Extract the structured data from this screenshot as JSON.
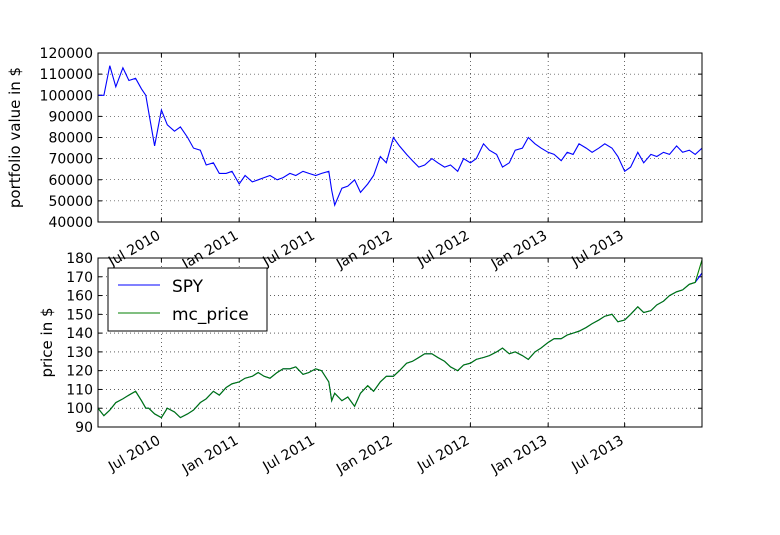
{
  "chart_data": [
    {
      "type": "line",
      "ylabel": "portfolio value in $",
      "ylim": [
        40000,
        120000
      ],
      "yticks": [
        40000,
        50000,
        60000,
        70000,
        80000,
        90000,
        100000,
        110000,
        120000
      ],
      "xlim": [
        "2010-02-01",
        "2013-12-31"
      ],
      "xticks": [
        "2010-07-01",
        "2011-01-01",
        "2011-07-01",
        "2012-01-01",
        "2012-07-01",
        "2013-01-01",
        "2013-07-01"
      ],
      "xtick_labels": [
        "Jul 2010",
        "Jan 2011",
        "Jul 2011",
        "Jan 2012",
        "Jul 2012",
        "Jan 2013",
        "Jul 2013"
      ],
      "grid": true,
      "series": [
        {
          "color": "#0000ff",
          "x": [
            "2010-02-01",
            "2010-02-15",
            "2010-03-01",
            "2010-03-15",
            "2010-04-01",
            "2010-04-15",
            "2010-05-01",
            "2010-05-15",
            "2010-05-25",
            "2010-06-01",
            "2010-06-15",
            "2010-07-01",
            "2010-07-15",
            "2010-08-01",
            "2010-08-15",
            "2010-09-01",
            "2010-09-15",
            "2010-10-01",
            "2010-10-15",
            "2010-11-01",
            "2010-11-15",
            "2010-12-01",
            "2010-12-15",
            "2011-01-01",
            "2011-01-15",
            "2011-02-01",
            "2011-02-15",
            "2011-03-01",
            "2011-03-15",
            "2011-04-01",
            "2011-04-15",
            "2011-05-01",
            "2011-05-15",
            "2011-06-01",
            "2011-06-15",
            "2011-07-01",
            "2011-07-15",
            "2011-08-01",
            "2011-08-08",
            "2011-08-15",
            "2011-09-01",
            "2011-09-15",
            "2011-10-01",
            "2011-10-15",
            "2011-11-01",
            "2011-11-15",
            "2011-12-01",
            "2011-12-15",
            "2012-01-01",
            "2012-01-15",
            "2012-02-01",
            "2012-02-15",
            "2012-03-01",
            "2012-03-15",
            "2012-04-01",
            "2012-04-15",
            "2012-05-01",
            "2012-05-15",
            "2012-06-01",
            "2012-06-15",
            "2012-07-01",
            "2012-07-15",
            "2012-08-01",
            "2012-08-15",
            "2012-09-01",
            "2012-09-15",
            "2012-10-01",
            "2012-10-15",
            "2012-11-01",
            "2012-11-15",
            "2012-12-01",
            "2012-12-15",
            "2013-01-01",
            "2013-01-15",
            "2013-02-01",
            "2013-02-15",
            "2013-03-01",
            "2013-03-15",
            "2013-04-01",
            "2013-04-15",
            "2013-05-01",
            "2013-05-15",
            "2013-06-01",
            "2013-06-15",
            "2013-07-01",
            "2013-07-15",
            "2013-08-01",
            "2013-08-15",
            "2013-09-01",
            "2013-09-15",
            "2013-10-01",
            "2013-10-15",
            "2013-11-01",
            "2013-11-15",
            "2013-12-01",
            "2013-12-15",
            "2013-12-31"
          ],
          "values": [
            100000,
            100000,
            114000,
            104000,
            113000,
            107000,
            108000,
            103000,
            100000,
            92000,
            76000,
            93000,
            86000,
            83000,
            85000,
            80000,
            75000,
            74000,
            67000,
            68000,
            63000,
            63000,
            64000,
            58000,
            62000,
            59000,
            60000,
            61000,
            62000,
            60000,
            61000,
            63000,
            62000,
            64000,
            63000,
            62000,
            63000,
            64000,
            55000,
            48000,
            56000,
            57000,
            60000,
            54000,
            58000,
            62000,
            71000,
            68000,
            80000,
            76000,
            72000,
            69000,
            66000,
            67000,
            70000,
            68000,
            66000,
            67000,
            64000,
            70000,
            68000,
            70000,
            77000,
            74000,
            72000,
            66000,
            68000,
            74000,
            75000,
            80000,
            77000,
            75000,
            73000,
            72000,
            69000,
            73000,
            72000,
            77000,
            75000,
            73000,
            75000,
            77000,
            75000,
            71000,
            64000,
            66000,
            73000,
            68000,
            72000,
            71000,
            73000,
            72000,
            76000,
            73000,
            74000,
            72000,
            75000
          ]
        }
      ]
    },
    {
      "type": "line",
      "ylabel": "price in $",
      "ylim": [
        90,
        180
      ],
      "yticks": [
        90,
        100,
        110,
        120,
        130,
        140,
        150,
        160,
        170,
        180
      ],
      "xlim": [
        "2010-02-01",
        "2013-12-31"
      ],
      "xticks": [
        "2010-07-01",
        "2011-01-01",
        "2011-07-01",
        "2012-01-01",
        "2012-07-01",
        "2013-01-01",
        "2013-07-01"
      ],
      "xtick_labels": [
        "Jul 2010",
        "Jan 2011",
        "Jul 2011",
        "Jan 2012",
        "Jul 2012",
        "Jan 2013",
        "Jul 2013"
      ],
      "grid": true,
      "legend_position": "top-left",
      "series": [
        {
          "name": "SPY",
          "color": "#0000ff",
          "x": [
            "2010-02-01",
            "2010-02-15",
            "2010-03-01",
            "2010-03-15",
            "2010-04-01",
            "2010-04-15",
            "2010-05-01",
            "2010-05-15",
            "2010-05-25",
            "2010-06-01",
            "2010-06-15",
            "2010-07-01",
            "2010-07-15",
            "2010-08-01",
            "2010-08-15",
            "2010-09-01",
            "2010-09-15",
            "2010-10-01",
            "2010-10-15",
            "2010-11-01",
            "2010-11-15",
            "2010-12-01",
            "2010-12-15",
            "2011-01-01",
            "2011-01-15",
            "2011-02-01",
            "2011-02-15",
            "2011-03-01",
            "2011-03-15",
            "2011-04-01",
            "2011-04-15",
            "2011-05-01",
            "2011-05-15",
            "2011-06-01",
            "2011-06-15",
            "2011-07-01",
            "2011-07-15",
            "2011-08-01",
            "2011-08-08",
            "2011-08-15",
            "2011-09-01",
            "2011-09-15",
            "2011-10-01",
            "2011-10-15",
            "2011-11-01",
            "2011-11-15",
            "2011-12-01",
            "2011-12-15",
            "2012-01-01",
            "2012-01-15",
            "2012-02-01",
            "2012-02-15",
            "2012-03-01",
            "2012-03-15",
            "2012-04-01",
            "2012-04-15",
            "2012-05-01",
            "2012-05-15",
            "2012-06-01",
            "2012-06-15",
            "2012-07-01",
            "2012-07-15",
            "2012-08-01",
            "2012-08-15",
            "2012-09-01",
            "2012-09-15",
            "2012-10-01",
            "2012-10-15",
            "2012-11-01",
            "2012-11-15",
            "2012-12-01",
            "2012-12-15",
            "2013-01-01",
            "2013-01-15",
            "2013-02-01",
            "2013-02-15",
            "2013-03-01",
            "2013-03-15",
            "2013-04-01",
            "2013-04-15",
            "2013-05-01",
            "2013-05-15",
            "2013-06-01",
            "2013-06-15",
            "2013-07-01",
            "2013-07-15",
            "2013-08-01",
            "2013-08-15",
            "2013-09-01",
            "2013-09-15",
            "2013-10-01",
            "2013-10-15",
            "2013-11-01",
            "2013-11-15",
            "2013-12-01",
            "2013-12-15",
            "2013-12-31"
          ],
          "values": [
            100,
            96,
            99,
            103,
            105,
            107,
            109,
            104,
            100,
            100,
            97,
            95,
            100,
            98,
            95,
            97,
            99,
            103,
            105,
            109,
            107,
            111,
            113,
            114,
            116,
            117,
            119,
            117,
            116,
            119,
            121,
            121,
            122,
            118,
            119,
            121,
            120,
            114,
            104,
            108,
            104,
            106,
            101,
            108,
            112,
            109,
            114,
            117,
            117,
            120,
            124,
            125,
            127,
            129,
            129,
            127,
            125,
            122,
            120,
            123,
            124,
            126,
            127,
            128,
            130,
            132,
            129,
            130,
            128,
            126,
            130,
            132,
            135,
            137,
            137,
            139,
            140,
            141,
            143,
            145,
            147,
            149,
            150,
            146,
            147,
            150,
            154,
            151,
            152,
            155,
            157,
            160,
            162,
            163,
            166,
            167,
            172
          ]
        },
        {
          "name": "mc_price",
          "color": "#007f00",
          "x": [
            "2010-02-01",
            "2010-02-15",
            "2010-03-01",
            "2010-03-15",
            "2010-04-01",
            "2010-04-15",
            "2010-05-01",
            "2010-05-15",
            "2010-05-25",
            "2010-06-01",
            "2010-06-15",
            "2010-07-01",
            "2010-07-15",
            "2010-08-01",
            "2010-08-15",
            "2010-09-01",
            "2010-09-15",
            "2010-10-01",
            "2010-10-15",
            "2010-11-01",
            "2010-11-15",
            "2010-12-01",
            "2010-12-15",
            "2011-01-01",
            "2011-01-15",
            "2011-02-01",
            "2011-02-15",
            "2011-03-01",
            "2011-03-15",
            "2011-04-01",
            "2011-04-15",
            "2011-05-01",
            "2011-05-15",
            "2011-06-01",
            "2011-06-15",
            "2011-07-01",
            "2011-07-15",
            "2011-08-01",
            "2011-08-08",
            "2011-08-15",
            "2011-09-01",
            "2011-09-15",
            "2011-10-01",
            "2011-10-15",
            "2011-11-01",
            "2011-11-15",
            "2011-12-01",
            "2011-12-15",
            "2012-01-01",
            "2012-01-15",
            "2012-02-01",
            "2012-02-15",
            "2012-03-01",
            "2012-03-15",
            "2012-04-01",
            "2012-04-15",
            "2012-05-01",
            "2012-05-15",
            "2012-06-01",
            "2012-06-15",
            "2012-07-01",
            "2012-07-15",
            "2012-08-01",
            "2012-08-15",
            "2012-09-01",
            "2012-09-15",
            "2012-10-01",
            "2012-10-15",
            "2012-11-01",
            "2012-11-15",
            "2012-12-01",
            "2012-12-15",
            "2013-01-01",
            "2013-01-15",
            "2013-02-01",
            "2013-02-15",
            "2013-03-01",
            "2013-03-15",
            "2013-04-01",
            "2013-04-15",
            "2013-05-01",
            "2013-05-15",
            "2013-06-01",
            "2013-06-15",
            "2013-07-01",
            "2013-07-15",
            "2013-08-01",
            "2013-08-15",
            "2013-09-01",
            "2013-09-15",
            "2013-10-01",
            "2013-10-15",
            "2013-11-01",
            "2013-11-15",
            "2013-12-01",
            "2013-12-15",
            "2013-12-31"
          ],
          "values": [
            100,
            96,
            99,
            103,
            105,
            107,
            109,
            104,
            100,
            100,
            97,
            95,
            100,
            98,
            95,
            97,
            99,
            103,
            105,
            109,
            107,
            111,
            113,
            114,
            116,
            117,
            119,
            117,
            116,
            119,
            121,
            121,
            122,
            118,
            119,
            121,
            120,
            114,
            104,
            108,
            104,
            106,
            101,
            108,
            112,
            109,
            114,
            117,
            117,
            120,
            124,
            125,
            127,
            129,
            129,
            127,
            125,
            122,
            120,
            123,
            124,
            126,
            127,
            128,
            130,
            132,
            129,
            130,
            128,
            126,
            130,
            132,
            135,
            137,
            137,
            139,
            140,
            141,
            143,
            145,
            147,
            149,
            150,
            146,
            147,
            150,
            154,
            151,
            152,
            155,
            157,
            160,
            162,
            163,
            166,
            167,
            179
          ]
        }
      ]
    }
  ]
}
